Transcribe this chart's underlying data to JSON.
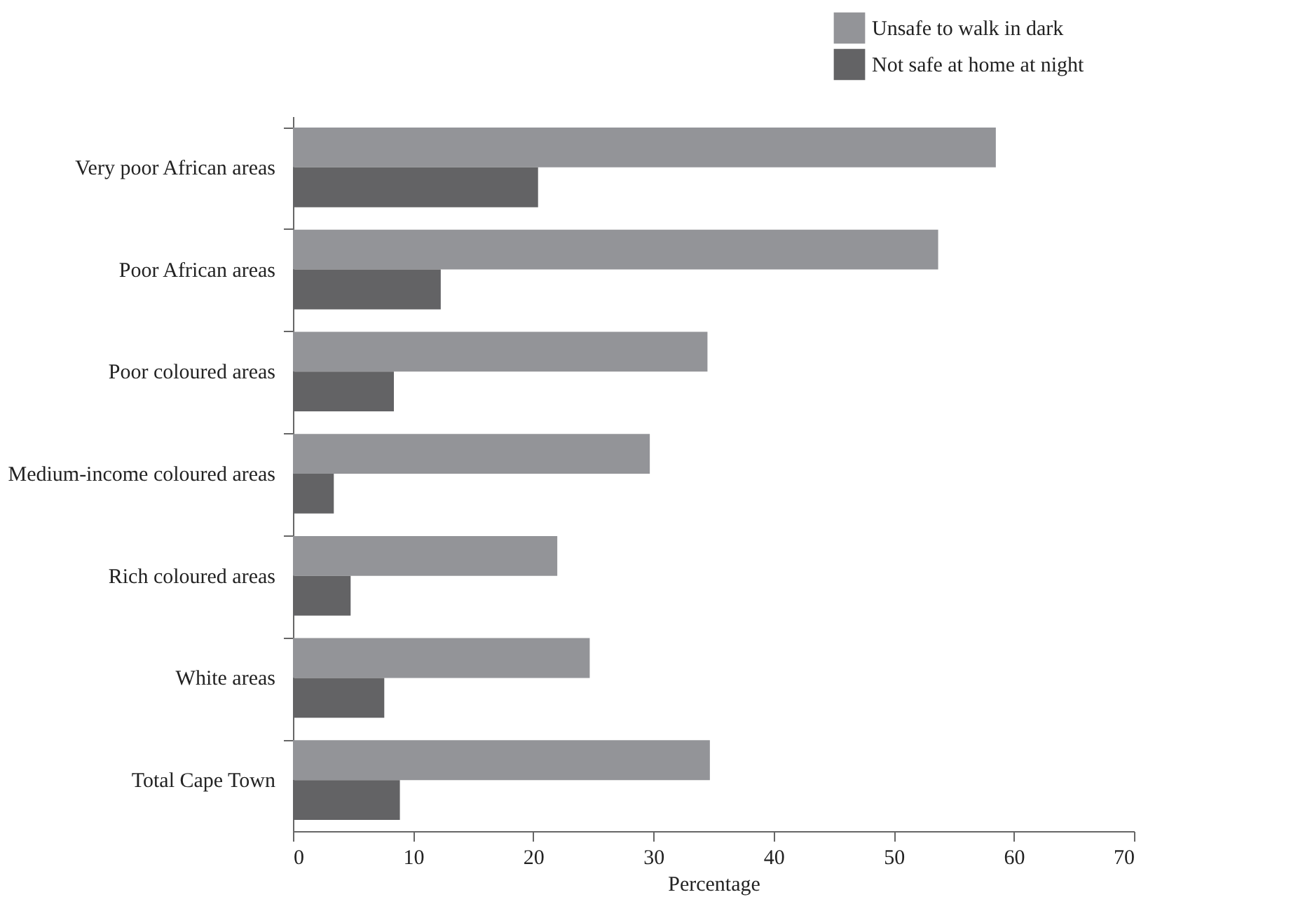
{
  "chart_data": {
    "type": "bar",
    "orientation": "horizontal",
    "xlabel": "Percentage",
    "categories": [
      "Very poor African areas",
      "Poor African areas",
      "Poor coloured areas",
      "Medium-income coloured areas",
      "Rich coloured areas",
      "White areas",
      "Total Cape Town"
    ],
    "series": [
      {
        "name": "Unsafe to walk in dark",
        "color": "#939498",
        "values": [
          58.5,
          53.7,
          34.5,
          29.7,
          22.0,
          24.7,
          34.7
        ]
      },
      {
        "name": "Not safe at home at night",
        "color": "#636365",
        "values": [
          20.4,
          12.3,
          8.4,
          3.4,
          4.8,
          7.6,
          8.9
        ]
      }
    ],
    "xlim": [
      0,
      70
    ],
    "xticks": [
      0,
      10,
      20,
      30,
      40,
      50,
      60,
      70
    ],
    "grid": false,
    "legend": "top right"
  }
}
